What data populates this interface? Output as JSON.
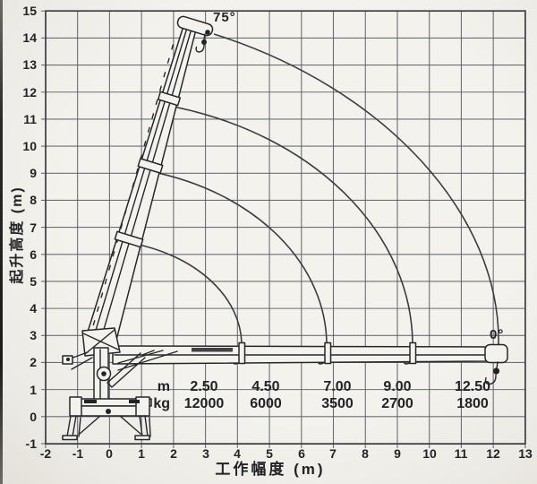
{
  "colors": {
    "paper": "#f1f0ea",
    "grid": "#5b5d64",
    "ink": "#26272b",
    "arc": "#3a3c41"
  },
  "y_axis": {
    "title": "起升高度 (m)",
    "ticks": [
      "15",
      "14",
      "13",
      "12",
      "11",
      "10",
      "9",
      "8",
      "7",
      "6",
      "5",
      "4",
      "3",
      "2",
      "1",
      "0",
      "-1"
    ]
  },
  "x_axis": {
    "title": "工作幅度 (m)",
    "ticks": [
      "-2",
      "-1",
      "0",
      "1",
      "2",
      "3",
      "4",
      "5",
      "6",
      "7",
      "8",
      "9",
      "10",
      "11",
      "12",
      "13"
    ]
  },
  "boom": {
    "max_angle_label": "75°",
    "min_angle_label": "0°"
  },
  "load_table": {
    "radius_unit": "m",
    "capacity_unit": "kg",
    "radii": [
      "2.50",
      "4.50",
      "7.00",
      "9.00",
      "12.50"
    ],
    "capacities": [
      "12000",
      "6000",
      "3500",
      "2700",
      "1800"
    ]
  },
  "chart_data": {
    "type": "line",
    "title": "",
    "xlabel": "工作幅度 (m)",
    "ylabel": "起升高度 (m)",
    "xlim": [
      -2,
      13
    ],
    "ylim": [
      -1,
      15
    ],
    "grid": true,
    "boom_pivot": {
      "x": -0.55,
      "y": 2.65
    },
    "boom_angle_max_deg": 75,
    "boom_angle_min_deg": 0,
    "extension_arc_radii_m": [
      4.7,
      7.3,
      10.0,
      12.7
    ],
    "load_chart": {
      "radius_m": [
        2.5,
        4.5,
        7.0,
        9.0,
        12.5
      ],
      "capacity_kg": [
        12000,
        6000,
        3500,
        2700,
        1800
      ]
    }
  }
}
